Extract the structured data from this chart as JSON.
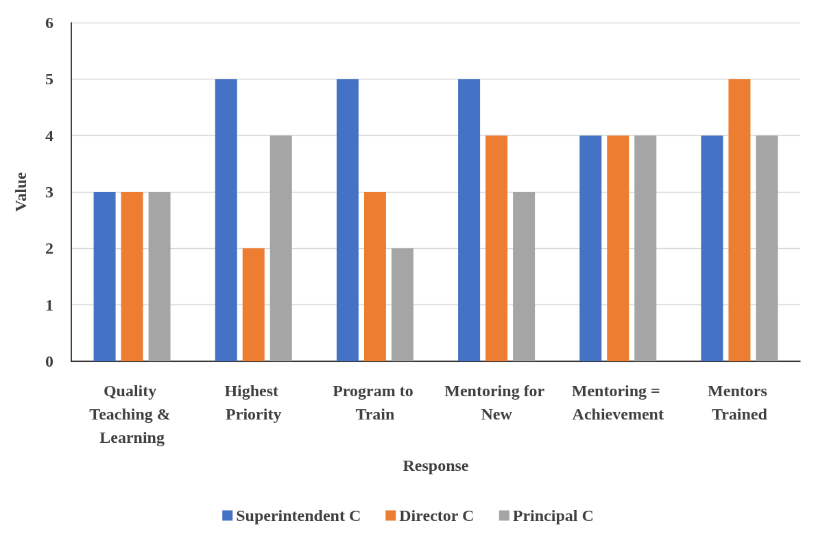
{
  "chart_data": {
    "type": "bar",
    "xlabel": "Response",
    "ylabel": "Value",
    "categories": [
      "Quality Teaching & Learning",
      "Highest Priority",
      "Program to Train",
      "Mentoring for New",
      "Mentoring = Achievement",
      "Mentors Trained"
    ],
    "series": [
      {
        "name": "Superintendent C",
        "color": "#4472c4",
        "values": [
          3,
          5,
          5,
          5,
          4,
          4
        ]
      },
      {
        "name": "Director C",
        "color": "#ed7d31",
        "values": [
          3,
          2,
          3,
          4,
          4,
          5
        ]
      },
      {
        "name": "Principal C",
        "color": "#a5a5a5",
        "values": [
          3,
          4,
          2,
          3,
          4,
          4
        ]
      }
    ],
    "ylim": [
      0,
      6
    ],
    "yticks": [
      0,
      1,
      2,
      3,
      4,
      5,
      6
    ],
    "grid": "y",
    "legend": "bottom"
  }
}
